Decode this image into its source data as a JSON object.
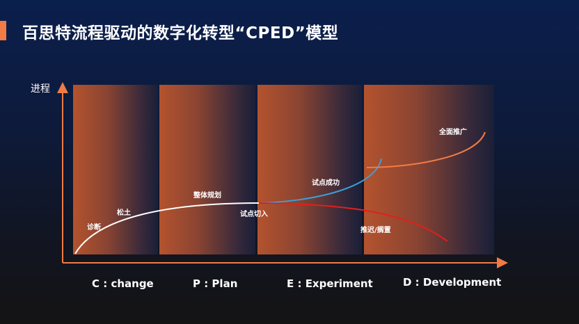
{
  "title": "百思特流程驱动的数字化转型“CPED”模型",
  "y_axis_label": "进程",
  "labels": {
    "diagnose": "诊断",
    "loosen": "松土",
    "planning": "整体规划",
    "pilot_entry": "试点切入",
    "pilot_success": "试点成功",
    "delay": "推迟/搁置",
    "rollout": "全面推广"
  },
  "phases": [
    "C : change",
    "P : Plan",
    "E : Experiment",
    "D : Development"
  ],
  "colors": {
    "accent": "#f07b45",
    "axis": "#f07b45",
    "main_curve": "#ffffff",
    "success_curve": "#3aa0d8",
    "delay_curve": "#e0201c",
    "rollout_curve": "#f07b45"
  }
}
